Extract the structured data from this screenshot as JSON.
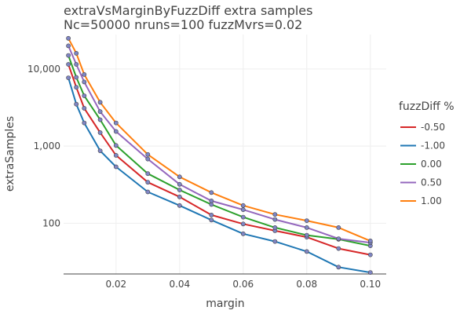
{
  "chart_data": {
    "type": "line",
    "title": "extraVsMarginByFuzzDiff extra samples",
    "subtitle": "Nc=50000 nruns=100 fuzzMvrs=0.02",
    "xlabel": "margin",
    "ylabel": "extraSamples",
    "xlim": [
      0.0035,
      0.105
    ],
    "ylim": [
      22,
      28000
    ],
    "y_scale": "log",
    "x_ticks": [
      0.02,
      0.04,
      0.06,
      0.08,
      0.1
    ],
    "x_tick_labels": [
      "0.02",
      "0.04",
      "0.06",
      "0.08",
      "0.10"
    ],
    "y_ticks": [
      100,
      1000,
      10000
    ],
    "y_tick_labels": [
      "100",
      "1,000",
      "10,000"
    ],
    "grid": true,
    "legend_title": "fuzzDiff %",
    "legend_position": "right",
    "marker_color": "#7f85c4",
    "series": [
      {
        "name": "-0.50",
        "color": "#d62728",
        "x": [
          0.005,
          0.0075,
          0.01,
          0.015,
          0.02,
          0.03,
          0.04,
          0.05,
          0.06,
          0.07,
          0.08,
          0.09,
          0.1
        ],
        "y": [
          11500,
          5800,
          3100,
          1500,
          760,
          340,
          220,
          128,
          98,
          80,
          66,
          47,
          39
        ]
      },
      {
        "name": "-1.00",
        "color": "#1f77b4",
        "x": [
          0.005,
          0.0075,
          0.01,
          0.015,
          0.02,
          0.03,
          0.04,
          0.05,
          0.06,
          0.07,
          0.08,
          0.09,
          0.1
        ],
        "y": [
          7700,
          3500,
          2000,
          870,
          540,
          255,
          170,
          110,
          73,
          58,
          43,
          27,
          23
        ]
      },
      {
        "name": "0.00",
        "color": "#2ca02c",
        "x": [
          0.005,
          0.0075,
          0.01,
          0.015,
          0.02,
          0.03,
          0.04,
          0.05,
          0.06,
          0.07,
          0.08,
          0.09,
          0.1
        ],
        "y": [
          15000,
          7800,
          4500,
          2200,
          1020,
          440,
          270,
          175,
          120,
          88,
          70,
          62,
          51
        ]
      },
      {
        "name": "0.50",
        "color": "#9467bd",
        "x": [
          0.005,
          0.0075,
          0.01,
          0.015,
          0.02,
          0.03,
          0.04,
          0.05,
          0.06,
          0.07,
          0.08,
          0.09,
          0.1
        ],
        "y": [
          20000,
          11500,
          6800,
          2800,
          1550,
          680,
          320,
          195,
          150,
          112,
          88,
          63,
          56
        ]
      },
      {
        "name": "1.00",
        "color": "#ff7f0e",
        "x": [
          0.005,
          0.0075,
          0.01,
          0.015,
          0.02,
          0.03,
          0.04,
          0.05,
          0.06,
          0.07,
          0.08,
          0.09,
          0.1
        ],
        "y": [
          25000,
          16000,
          8500,
          3700,
          2000,
          780,
          400,
          250,
          170,
          130,
          108,
          88,
          59
        ]
      }
    ]
  }
}
